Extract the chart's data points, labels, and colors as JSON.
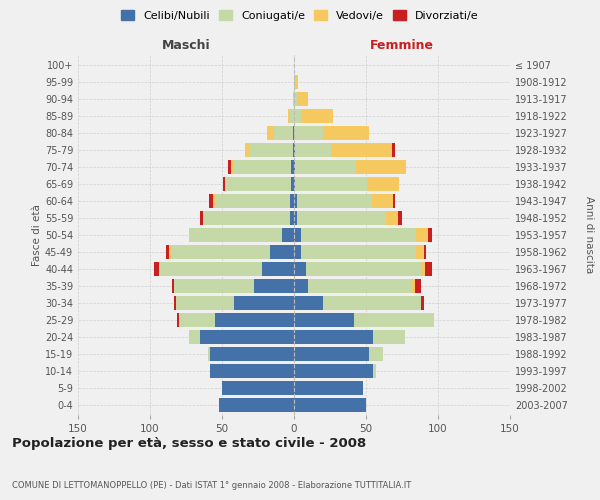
{
  "age_groups": [
    "0-4",
    "5-9",
    "10-14",
    "15-19",
    "20-24",
    "25-29",
    "30-34",
    "35-39",
    "40-44",
    "45-49",
    "50-54",
    "55-59",
    "60-64",
    "65-69",
    "70-74",
    "75-79",
    "80-84",
    "85-89",
    "90-94",
    "95-99",
    "100+"
  ],
  "birth_years": [
    "2003-2007",
    "1998-2002",
    "1993-1997",
    "1988-1992",
    "1983-1987",
    "1978-1982",
    "1973-1977",
    "1968-1972",
    "1963-1967",
    "1958-1962",
    "1953-1957",
    "1948-1952",
    "1943-1947",
    "1938-1942",
    "1933-1937",
    "1928-1932",
    "1923-1927",
    "1918-1922",
    "1913-1917",
    "1908-1912",
    "≤ 1907"
  ],
  "males": {
    "celibi": [
      52,
      50,
      58,
      58,
      65,
      55,
      42,
      28,
      22,
      17,
      8,
      3,
      3,
      2,
      2,
      1,
      1,
      0,
      0,
      0,
      0
    ],
    "coniugati": [
      0,
      0,
      0,
      2,
      8,
      25,
      40,
      55,
      72,
      68,
      65,
      60,
      52,
      45,
      40,
      30,
      13,
      3,
      1,
      0,
      0
    ],
    "vedovi": [
      0,
      0,
      0,
      0,
      0,
      0,
      0,
      0,
      0,
      2,
      0,
      0,
      1,
      1,
      2,
      3,
      5,
      1,
      0,
      0,
      0
    ],
    "divorziati": [
      0,
      0,
      0,
      0,
      0,
      1,
      1,
      2,
      3,
      2,
      0,
      2,
      3,
      1,
      2,
      0,
      0,
      0,
      0,
      0,
      0
    ]
  },
  "females": {
    "nubili": [
      50,
      48,
      55,
      52,
      55,
      42,
      20,
      10,
      8,
      5,
      5,
      2,
      2,
      1,
      1,
      1,
      0,
      0,
      0,
      0,
      0
    ],
    "coniugate": [
      0,
      0,
      2,
      10,
      22,
      55,
      68,
      72,
      80,
      80,
      80,
      62,
      52,
      50,
      42,
      25,
      20,
      5,
      2,
      1,
      0
    ],
    "vedove": [
      0,
      0,
      0,
      0,
      0,
      0,
      0,
      2,
      3,
      5,
      8,
      8,
      15,
      22,
      35,
      42,
      32,
      22,
      8,
      2,
      0
    ],
    "divorziate": [
      0,
      0,
      0,
      0,
      0,
      0,
      2,
      4,
      5,
      2,
      3,
      3,
      1,
      0,
      0,
      2,
      0,
      0,
      0,
      0,
      0
    ]
  },
  "colors": {
    "celibi_nubili": "#4472a8",
    "coniugati": "#c5d9a8",
    "vedovi": "#f5c860",
    "divorziati": "#c82020"
  },
  "xlim": 150,
  "title": "Popolazione per età, sesso e stato civile - 2008",
  "subtitle": "COMUNE DI LETTOMANOPPELLO (PE) - Dati ISTAT 1° gennaio 2008 - Elaborazione TUTTITALIA.IT",
  "ylabel_left": "Fasce di età",
  "ylabel_right": "Anni di nascita",
  "xlabel_left": "Maschi",
  "xlabel_right": "Femmine",
  "bg_color": "#f0f0f0",
  "grid_color": "#cccccc"
}
